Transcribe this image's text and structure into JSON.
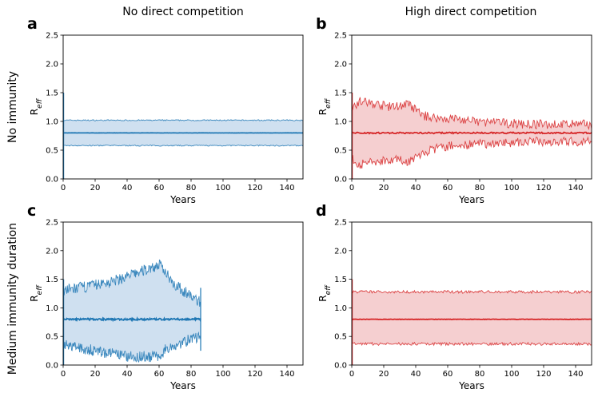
{
  "figure": {
    "column_titles": [
      "No direct competition",
      "High direct competition"
    ],
    "row_titles": [
      "No immunity",
      "Medium immunity duration"
    ]
  },
  "colors": {
    "blue_line": "#1f77b4",
    "blue_fill": "#cfe0f0",
    "red_line": "#d62728",
    "red_fill": "#f5cfd0"
  },
  "chart_data": [
    {
      "panel": "a",
      "type": "area",
      "color": "blue",
      "xlabel": "Years",
      "ylabel_main": "R",
      "ylabel_sub": "eff",
      "xlim": [
        0,
        150
      ],
      "ylim": [
        0,
        2.5
      ],
      "xticks": [
        0,
        20,
        40,
        60,
        80,
        100,
        120,
        140
      ],
      "yticks": [
        "0.0",
        "0.5",
        "1.0",
        "1.5",
        "2.0",
        "2.5"
      ],
      "series": [
        {
          "name": "mean",
          "x": [
            0,
            150
          ],
          "values": [
            0.8,
            0.8
          ]
        },
        {
          "name": "upper",
          "x": [
            0,
            150
          ],
          "values": [
            1.02,
            1.02
          ]
        },
        {
          "name": "lower",
          "x": [
            0,
            150
          ],
          "values": [
            0.58,
            0.58
          ]
        }
      ],
      "x_end": 150,
      "noise": 0.01
    },
    {
      "panel": "b",
      "type": "area",
      "color": "red",
      "xlabel": "Years",
      "ylabel_main": "R",
      "ylabel_sub": "eff",
      "xlim": [
        0,
        150
      ],
      "ylim": [
        0,
        2.5
      ],
      "xticks": [
        0,
        20,
        40,
        60,
        80,
        100,
        120,
        140
      ],
      "yticks": [
        "0.0",
        "0.5",
        "1.0",
        "1.5",
        "2.0",
        "2.5"
      ],
      "series": [
        {
          "name": "mean",
          "x": [
            0,
            150
          ],
          "values": [
            0.8,
            0.8
          ]
        },
        {
          "name": "upper",
          "x": [
            0,
            5,
            15,
            25,
            35,
            45,
            55,
            65,
            75,
            90,
            110,
            130,
            150
          ],
          "values": [
            1.25,
            1.35,
            1.3,
            1.25,
            1.3,
            1.1,
            1.05,
            1.05,
            1.0,
            0.98,
            0.95,
            0.95,
            0.95
          ]
        },
        {
          "name": "lower",
          "x": [
            0,
            5,
            15,
            25,
            35,
            45,
            55,
            65,
            75,
            90,
            110,
            130,
            150
          ],
          "values": [
            0.35,
            0.25,
            0.3,
            0.35,
            0.3,
            0.45,
            0.55,
            0.58,
            0.6,
            0.62,
            0.65,
            0.65,
            0.65
          ]
        }
      ],
      "x_end": 150,
      "noise": 0.08
    },
    {
      "panel": "c",
      "type": "area",
      "color": "blue",
      "xlabel": "Years",
      "ylabel_main": "R",
      "ylabel_sub": "eff",
      "xlim": [
        0,
        150
      ],
      "ylim": [
        0,
        2.5
      ],
      "xticks": [
        0,
        20,
        40,
        60,
        80,
        100,
        120,
        140
      ],
      "yticks": [
        "0.0",
        "0.5",
        "1.0",
        "1.5",
        "2.0",
        "2.5"
      ],
      "series": [
        {
          "name": "mean",
          "x": [
            0,
            86
          ],
          "values": [
            0.8,
            0.8
          ]
        },
        {
          "name": "upper",
          "x": [
            0,
            10,
            20,
            30,
            40,
            50,
            60,
            65,
            70,
            75,
            80,
            86
          ],
          "values": [
            1.3,
            1.35,
            1.4,
            1.45,
            1.55,
            1.65,
            1.75,
            1.6,
            1.4,
            1.3,
            1.2,
            1.1
          ]
        },
        {
          "name": "lower",
          "x": [
            0,
            10,
            20,
            30,
            40,
            50,
            60,
            65,
            70,
            75,
            80,
            86
          ],
          "values": [
            0.35,
            0.3,
            0.25,
            0.2,
            0.15,
            0.15,
            0.15,
            0.3,
            0.35,
            0.4,
            0.45,
            0.5
          ]
        }
      ],
      "x_end": 86,
      "noise": 0.1
    },
    {
      "panel": "d",
      "type": "area",
      "color": "red",
      "xlabel": "Years",
      "ylabel_main": "R",
      "ylabel_sub": "eff",
      "xlim": [
        0,
        150
      ],
      "ylim": [
        0,
        2.5
      ],
      "xticks": [
        0,
        20,
        40,
        60,
        80,
        100,
        120,
        140
      ],
      "yticks": [
        "0.0",
        "0.5",
        "1.0",
        "1.5",
        "2.0",
        "2.5"
      ],
      "series": [
        {
          "name": "mean",
          "x": [
            0,
            150
          ],
          "values": [
            0.8,
            0.8
          ]
        },
        {
          "name": "upper",
          "x": [
            0,
            150
          ],
          "values": [
            1.28,
            1.28
          ]
        },
        {
          "name": "lower",
          "x": [
            0,
            150
          ],
          "values": [
            0.37,
            0.37
          ]
        }
      ],
      "x_end": 150,
      "noise": 0.025
    }
  ]
}
